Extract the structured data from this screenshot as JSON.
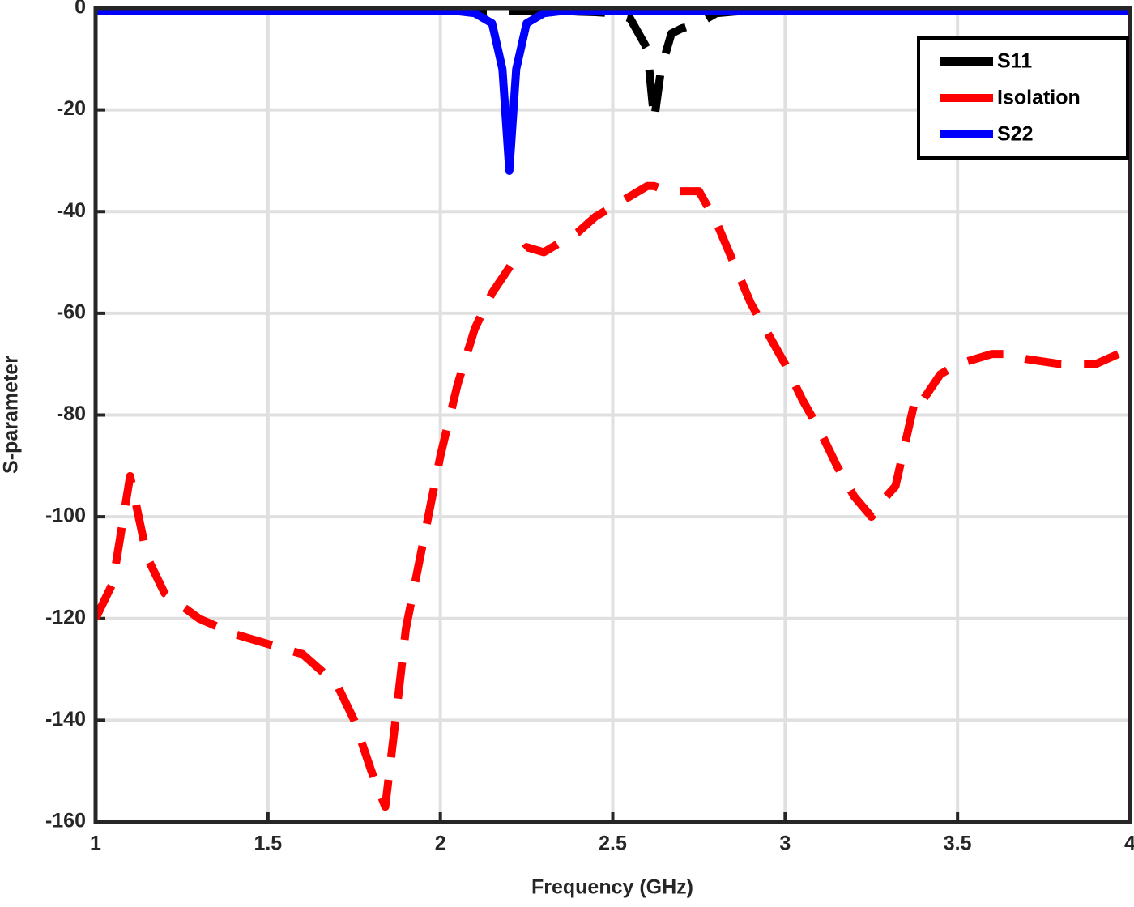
{
  "chart_data": {
    "type": "line",
    "x_label": "Frequency (GHz)",
    "y_label": "S-parameter",
    "x": [
      1,
      1.05,
      1.1,
      1.15,
      1.2,
      1.3,
      1.4,
      1.5,
      1.6,
      1.7,
      1.75,
      1.8,
      1.84,
      1.87,
      1.9,
      1.95,
      2.0,
      2.05,
      2.1,
      2.15,
      2.18,
      2.2,
      2.22,
      2.25,
      2.3,
      2.35,
      2.4,
      2.45,
      2.5,
      2.55,
      2.6,
      2.62,
      2.64,
      2.67,
      2.7,
      2.75,
      2.8,
      2.85,
      2.9,
      2.95,
      3.0,
      3.05,
      3.1,
      3.15,
      3.2,
      3.25,
      3.28,
      3.32,
      3.35,
      3.38,
      3.4,
      3.45,
      3.5,
      3.55,
      3.6,
      3.65,
      3.7,
      3.8,
      3.9,
      4.0
    ],
    "series": [
      {
        "name": "S11",
        "color": "#000000",
        "style": "dashed",
        "values": [
          -0.5,
          -0.5,
          -0.5,
          -0.5,
          -0.5,
          -0.5,
          -0.5,
          -0.5,
          -0.5,
          -0.5,
          -0.5,
          -0.5,
          -0.5,
          -0.5,
          -0.5,
          -0.5,
          -0.5,
          -0.5,
          -0.5,
          -0.5,
          -0.5,
          -0.5,
          -0.5,
          -0.5,
          -0.5,
          -0.5,
          -0.7,
          -0.8,
          -1,
          -2,
          -8,
          -22,
          -12,
          -5,
          -4,
          -3,
          -1,
          -0.7,
          -0.5,
          -0.5,
          -0.5,
          -0.5,
          -0.5,
          -0.5,
          -0.5,
          -0.5,
          -0.5,
          -0.5,
          -0.5,
          -0.5,
          -0.5,
          -0.5,
          -0.5,
          -0.5,
          -0.5,
          -0.5,
          -0.5,
          -0.5,
          -0.5,
          -0.5
        ]
      },
      {
        "name": "Isolation",
        "color": "#ff0000",
        "style": "dashed",
        "values": [
          -120,
          -113,
          -92,
          -108,
          -115,
          -120,
          -123,
          -125,
          -127,
          -133,
          -140,
          -150,
          -157,
          -140,
          -122,
          -105,
          -88,
          -74,
          -63,
          -56,
          -53,
          -51,
          -49,
          -47,
          -48,
          -46,
          -44,
          -41,
          -39,
          -37,
          -35,
          -35,
          -35.5,
          -36,
          -36,
          -36,
          -42,
          -50,
          -58,
          -64,
          -70,
          -77,
          -83,
          -90,
          -96,
          -100,
          -97,
          -94,
          -85,
          -76,
          -77,
          -72,
          -70,
          -69,
          -68,
          -68,
          -69,
          -70,
          -70,
          -67
        ]
      },
      {
        "name": "S22",
        "color": "#0000ff",
        "style": "solid",
        "values": [
          -0.5,
          -0.5,
          -0.5,
          -0.5,
          -0.5,
          -0.5,
          -0.5,
          -0.5,
          -0.5,
          -0.5,
          -0.5,
          -0.5,
          -0.5,
          -0.5,
          -0.5,
          -0.5,
          -0.5,
          -0.6,
          -1,
          -3,
          -12,
          -32,
          -12,
          -3,
          -1,
          -0.6,
          -0.5,
          -0.5,
          -0.5,
          -0.5,
          -0.5,
          -0.5,
          -0.5,
          -0.5,
          -0.5,
          -0.5,
          -0.5,
          -0.5,
          -0.5,
          -0.5,
          -0.5,
          -0.5,
          -0.5,
          -0.5,
          -0.5,
          -0.5,
          -0.5,
          -0.5,
          -0.5,
          -0.5,
          -0.5,
          -0.5,
          -0.5,
          -0.5,
          -0.5,
          -0.5,
          -0.5,
          -0.5,
          -0.5,
          -0.5
        ]
      }
    ],
    "xlim": [
      1,
      4
    ],
    "xticks": [
      1,
      1.5,
      2,
      2.5,
      3,
      3.5,
      4
    ],
    "ylim": [
      -160,
      0
    ],
    "yticks": [
      -160,
      -140,
      -120,
      -100,
      -80,
      -60,
      -40,
      -20,
      0
    ],
    "grid": true,
    "legend": "northeast"
  }
}
